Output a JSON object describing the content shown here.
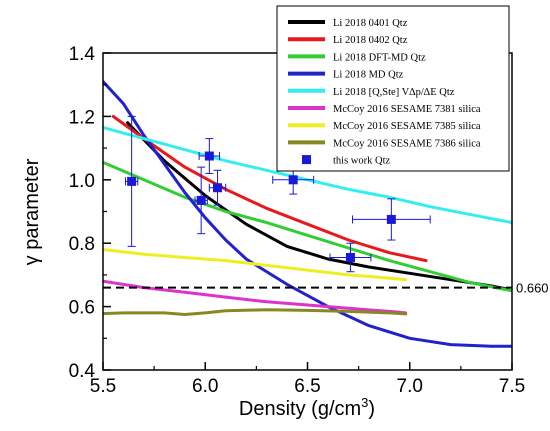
{
  "chart_data": {
    "type": "line",
    "title": "",
    "xlabel": "Density (g/cm",
    "xlabel_sup": "3",
    "xlabel_end": ")",
    "ylabel": "γ parameter",
    "xlim": [
      5.5,
      7.5
    ],
    "ylim": [
      0.4,
      1.4
    ],
    "xticks": [
      "5.5",
      "6.0",
      "6.5",
      "7.0",
      "7.5"
    ],
    "yticks": [
      "0.4",
      "0.6",
      "0.8",
      "1.0",
      "1.2",
      "1.4"
    ],
    "grid": false,
    "legend_position": "top-right",
    "reference_line": {
      "y": 0.66,
      "label": "0.660",
      "style": "dashed",
      "color": "#000000"
    },
    "series": [
      {
        "name": "Li 2018 0401 Qtz",
        "color": "#000000",
        "x": [
          5.62,
          5.8,
          6.0,
          6.2,
          6.4,
          6.6,
          6.8,
          7.0,
          7.2,
          7.4,
          7.48
        ],
        "y": [
          1.18,
          1.06,
          0.95,
          0.86,
          0.79,
          0.75,
          0.725,
          0.705,
          0.685,
          0.665,
          0.655
        ]
      },
      {
        "name": "Li 2018 0402 Qtz",
        "color": "#e8191b",
        "x": [
          5.55,
          5.7,
          5.9,
          6.1,
          6.3,
          6.5,
          6.7,
          6.9,
          7.08
        ],
        "y": [
          1.2,
          1.13,
          1.04,
          0.97,
          0.91,
          0.86,
          0.81,
          0.77,
          0.745
        ]
      },
      {
        "name": "Li 2018 DFT-MD Qtz",
        "color": "#33cc33",
        "x": [
          5.5,
          5.7,
          5.9,
          6.1,
          6.3,
          6.5,
          6.7,
          6.9,
          7.1,
          7.3,
          7.5
        ],
        "y": [
          1.055,
          1.0,
          0.945,
          0.9,
          0.865,
          0.825,
          0.785,
          0.745,
          0.71,
          0.675,
          0.65
        ]
      },
      {
        "name": "Li 2018 MD Qtz",
        "color": "#2222cc",
        "x": [
          5.5,
          5.6,
          5.7,
          5.8,
          5.9,
          6.0,
          6.1,
          6.2,
          6.4,
          6.6,
          6.8,
          7.0,
          7.2,
          7.4,
          7.5
        ],
        "y": [
          1.31,
          1.24,
          1.14,
          1.05,
          0.96,
          0.88,
          0.81,
          0.75,
          0.67,
          0.6,
          0.54,
          0.5,
          0.48,
          0.475,
          0.475
        ]
      },
      {
        "name": "Li 2018 [Q,Ste] V∆p/∆E Qtz",
        "color": "#33eeee",
        "x": [
          5.5,
          5.7,
          5.9,
          6.1,
          6.3,
          6.5,
          6.7,
          6.9,
          7.1,
          7.3,
          7.5
        ],
        "y": [
          1.165,
          1.13,
          1.095,
          1.06,
          1.03,
          1.0,
          0.97,
          0.945,
          0.915,
          0.89,
          0.865
        ]
      },
      {
        "name": "McCoy 2016 SESAME 7381 silica",
        "color": "#dd33cc",
        "x": [
          5.5,
          5.7,
          5.9,
          6.1,
          6.3,
          6.5,
          6.7,
          6.9,
          6.98
        ],
        "y": [
          0.68,
          0.66,
          0.645,
          0.63,
          0.615,
          0.605,
          0.595,
          0.585,
          0.58
        ]
      },
      {
        "name": "McCoy 2016 SESAME 7385 silica",
        "color": "#eeee22",
        "x": [
          5.5,
          5.7,
          5.9,
          6.1,
          6.3,
          6.5,
          6.7,
          6.9,
          6.98
        ],
        "y": [
          0.78,
          0.765,
          0.755,
          0.745,
          0.73,
          0.715,
          0.7,
          0.69,
          0.685
        ]
      },
      {
        "name": "McCoy 2016 SESAME 7386 silica",
        "color": "#888822",
        "x": [
          5.5,
          5.6,
          5.8,
          5.9,
          6.0,
          6.1,
          6.3,
          6.5,
          6.7,
          6.9,
          6.98
        ],
        "y": [
          0.578,
          0.58,
          0.58,
          0.575,
          0.58,
          0.587,
          0.59,
          0.588,
          0.585,
          0.58,
          0.577
        ]
      }
    ],
    "points": {
      "name": "this work Qtz",
      "color": "#1a1ad6",
      "data": [
        {
          "x": 5.64,
          "y": 0.995,
          "xerr": 0.03,
          "yerr": 0.205
        },
        {
          "x": 5.98,
          "y": 0.935,
          "xerr": 0.03,
          "yerr": 0.105
        },
        {
          "x": 6.02,
          "y": 1.075,
          "xerr": 0.05,
          "yerr": 0.055
        },
        {
          "x": 6.06,
          "y": 0.975,
          "xerr": 0.04,
          "yerr": 0.055
        },
        {
          "x": 6.43,
          "y": 1.0,
          "xerr": 0.1,
          "yerr": 0.045
        },
        {
          "x": 6.71,
          "y": 0.755,
          "xerr": 0.1,
          "yerr": 0.045
        },
        {
          "x": 6.91,
          "y": 0.875,
          "xerr": 0.19,
          "yerr": 0.065
        }
      ]
    }
  }
}
